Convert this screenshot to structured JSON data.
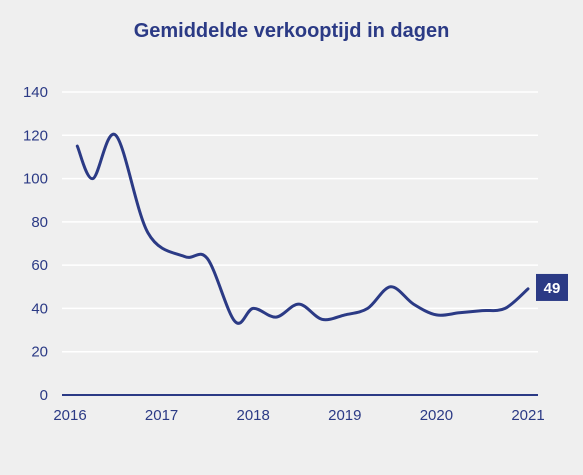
{
  "chart_data": {
    "type": "line",
    "title": "Gemiddelde verkooptijd in dagen",
    "xlabel": "",
    "ylabel": "",
    "x_ticks": [
      "2016",
      "2017",
      "2018",
      "2019",
      "2020",
      "2021"
    ],
    "y_ticks": [
      0,
      20,
      40,
      60,
      80,
      100,
      120,
      140
    ],
    "xlim": [
      2016,
      2021
    ],
    "ylim": [
      0,
      140
    ],
    "grid": true,
    "end_label": "49",
    "colors": {
      "line": "#2b3a85",
      "text": "#2b3a85",
      "grid": "#ffffff",
      "axis": "#2b3a85",
      "background": "#efefef"
    },
    "series": [
      {
        "x": [
          2016.08,
          2016.25,
          2016.5,
          2016.85,
          2017.25,
          2017.5,
          2017.8,
          2018.0,
          2018.25,
          2018.5,
          2018.75,
          2019.0,
          2019.25,
          2019.5,
          2019.75,
          2020.0,
          2020.25,
          2020.5,
          2020.75,
          2021.0
        ],
        "y": [
          115,
          100,
          120,
          75,
          64,
          63,
          34,
          40,
          36,
          42,
          35,
          37,
          40,
          50,
          42,
          37,
          38,
          39,
          40,
          49
        ]
      }
    ]
  }
}
